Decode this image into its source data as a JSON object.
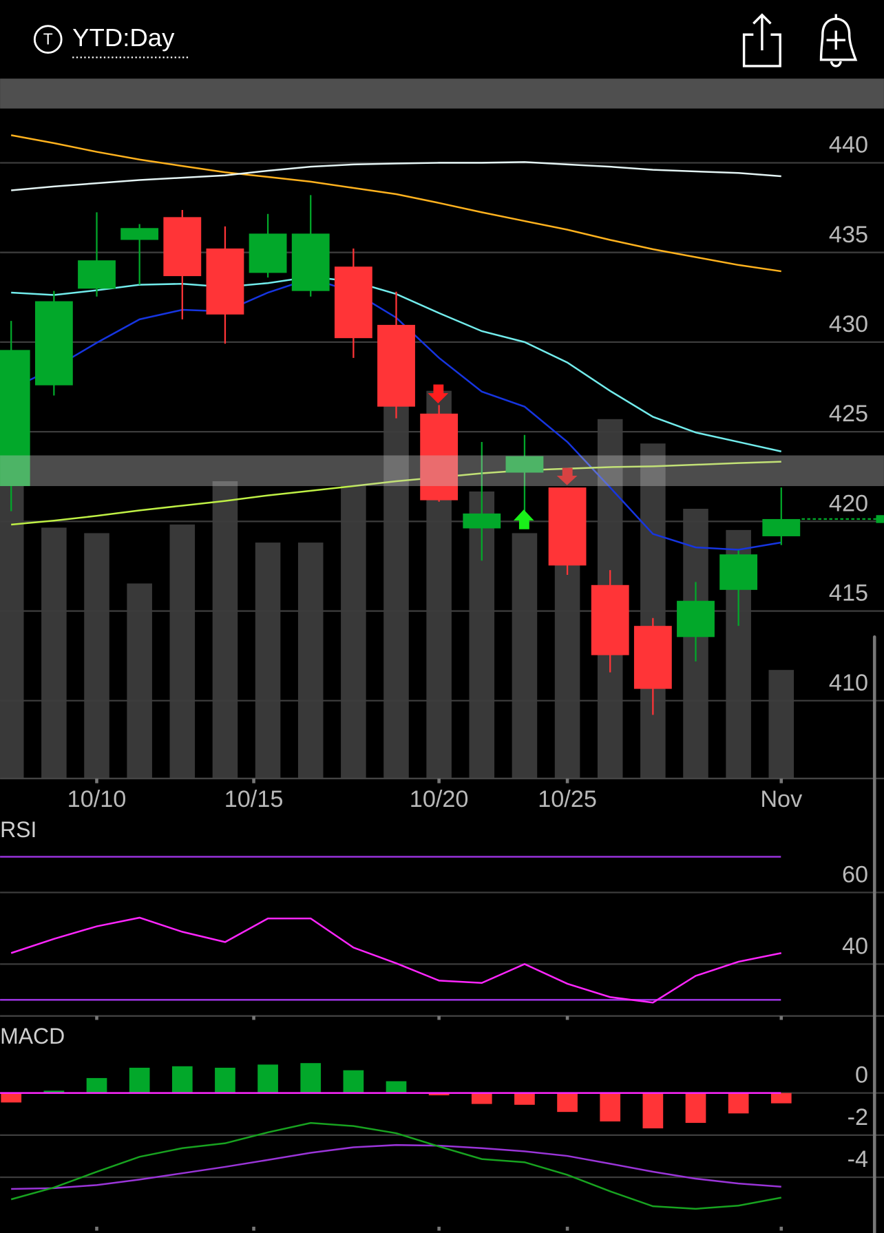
{
  "header": {
    "icon_letter": "T",
    "title": "YTD:Day"
  },
  "chart_data": [
    {
      "type": "candlestick",
      "xlim": [
        -0.26,
        20.4
      ],
      "xticks": [
        {
          "value": 2,
          "label": "10/10"
        },
        {
          "value": 5.67,
          "label": "10/15"
        },
        {
          "value": 10,
          "label": "10/20"
        },
        {
          "value": 13,
          "label": "10/25"
        },
        {
          "value": 18,
          "label": "Nov"
        }
      ],
      "ylim": [
        405.66,
        442.94
      ],
      "yticks": [
        410,
        415,
        420,
        425,
        430,
        435,
        440
      ],
      "grid": true,
      "open": [
        421.97,
        427.59,
        432.98,
        435.7,
        436.97,
        435.22,
        433.86,
        432.85,
        434.21,
        430.96,
        426.01,
        419.61,
        422.72,
        421.89,
        416.45,
        414.17,
        413.55,
        416.18,
        419.17
      ],
      "high": [
        431.18,
        432.85,
        437.24,
        436.58,
        437.37,
        436.45,
        437.15,
        438.2,
        435.22,
        432.81,
        426.49,
        424.43,
        424.82,
        421.89,
        417.28,
        414.61,
        416.62,
        418.38,
        421.89
      ],
      "low": [
        420.57,
        427.02,
        432.54,
        433.2,
        431.27,
        429.91,
        433.6,
        432.54,
        429.12,
        425.75,
        421.1,
        417.81,
        420.57,
        417.02,
        411.58,
        409.21,
        412.19,
        414.17,
        418.68
      ],
      "close": [
        429.56,
        432.28,
        434.56,
        436.36,
        433.68,
        431.54,
        436.05,
        436.05,
        430.22,
        426.4,
        421.18,
        420.44,
        423.64,
        417.54,
        412.54,
        410.66,
        415.57,
        418.16,
        420.13
      ],
      "up_color": "#02a82a",
      "down_color": "#ff3437",
      "volume": [
        390,
        319,
        312,
        248,
        323,
        378,
        300,
        300,
        372,
        490,
        493,
        365,
        312,
        350,
        457,
        426,
        343,
        316,
        138
      ],
      "volume_lim": [
        0,
        850
      ],
      "volume_color": "#393939",
      "band": [
        421.97,
        423.68
      ],
      "band_color": "rgba(200,200,200,0.38)",
      "lines": [
        {
          "color": "#ffb21e",
          "values": [
            441.54,
            441.1,
            440.61,
            440.18,
            439.82,
            439.47,
            439.21,
            438.95,
            438.6,
            438.25,
            437.76,
            437.24,
            436.75,
            436.27,
            435.7,
            435.18,
            434.74,
            434.3,
            433.95
          ]
        },
        {
          "color": "#e4f4f4",
          "values": [
            438.46,
            438.68,
            438.86,
            439.04,
            439.17,
            439.3,
            439.56,
            439.78,
            439.91,
            439.96,
            440.0,
            440.0,
            440.04,
            439.91,
            439.78,
            439.61,
            439.52,
            439.43,
            439.25
          ]
        },
        {
          "color": "#72ecec",
          "values": [
            432.76,
            432.63,
            432.89,
            433.2,
            433.25,
            433.07,
            433.29,
            433.64,
            433.38,
            432.68,
            431.62,
            430.61,
            430.0,
            428.86,
            427.28,
            425.83,
            424.96,
            424.43,
            423.9
          ]
        },
        {
          "color": "#1635e0",
          "values": [
            427.37,
            428.55,
            429.96,
            431.27,
            431.8,
            431.71,
            432.76,
            433.55,
            432.81,
            431.36,
            429.12,
            427.24,
            426.4,
            424.43,
            421.89,
            419.3,
            418.55,
            418.42,
            418.82
          ]
        },
        {
          "color": "#bff045",
          "values": [
            419.82,
            420.04,
            420.31,
            420.61,
            420.88,
            421.14,
            421.45,
            421.71,
            421.97,
            422.24,
            422.46,
            422.68,
            422.85,
            422.94,
            423.03,
            423.07,
            423.16,
            423.25,
            423.33
          ]
        }
      ]
    },
    {
      "type": "line",
      "title": "RSI",
      "values": [
        43.08,
        47.03,
        50.55,
        52.97,
        49.01,
        46.15,
        52.75,
        52.75,
        44.62,
        40.22,
        35.38,
        34.73,
        40.0,
        34.51,
        30.77,
        29.23,
        36.7,
        40.66,
        43.08
      ],
      "color": "#ff26ff",
      "levels": [
        70,
        30
      ],
      "level_color": "#9933dd",
      "ylim": [
        25.49,
        80.88
      ],
      "yticks": [
        40,
        60
      ],
      "grid": true
    },
    {
      "type": "macd",
      "title": "MACD",
      "histogram": [
        -0.45,
        0.11,
        0.71,
        1.2,
        1.27,
        1.2,
        1.35,
        1.42,
        1.08,
        0.56,
        -0.11,
        -0.52,
        -0.56,
        -0.9,
        -1.35,
        -1.68,
        -1.42,
        -0.97,
        -0.49
      ],
      "macd": [
        -5.05,
        -4.49,
        -3.74,
        -3.03,
        -2.62,
        -2.39,
        -1.87,
        -1.42,
        -1.57,
        -1.91,
        -2.54,
        -3.14,
        -3.29,
        -3.89,
        -4.67,
        -5.38,
        -5.5,
        -5.35,
        -4.97
      ],
      "signal": [
        -4.56,
        -4.52,
        -4.37,
        -4.11,
        -3.81,
        -3.51,
        -3.18,
        -2.84,
        -2.58,
        -2.47,
        -2.5,
        -2.62,
        -2.77,
        -2.99,
        -3.36,
        -3.74,
        -4.07,
        -4.3,
        -4.45
      ],
      "up_color": "#02a82a",
      "down_color": "#ff3437",
      "macd_color": "#18a320",
      "signal_color": "#9a35d8",
      "zero_color": "#ff26ff",
      "ylim": [
        -6.65,
        3.36
      ],
      "yticks": [
        -4,
        -2,
        0
      ],
      "grid": true
    }
  ]
}
